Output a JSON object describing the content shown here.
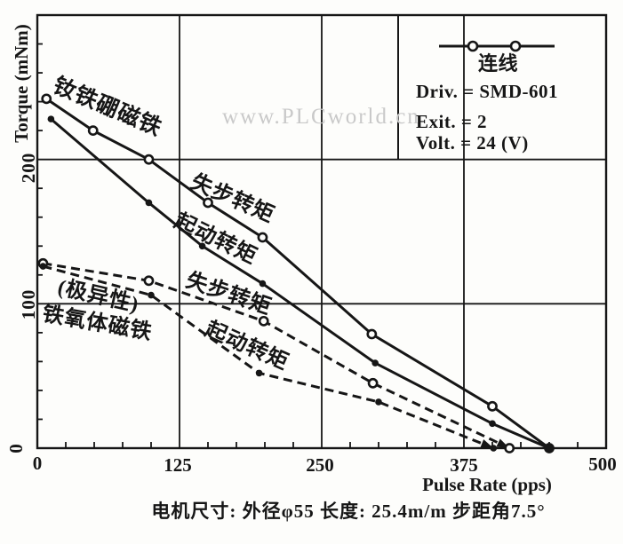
{
  "figure": {
    "watermark": "www.PLCworld.cn",
    "caption": "电机尺寸: 外径φ55   长度: 25.4m/m   步距角7.5°"
  },
  "legend": {
    "title": "连线",
    "lines": [
      "Driv. = SMD-601",
      "Exit. = 2",
      "Volt. = 24 (V)"
    ]
  },
  "chart_data": {
    "type": "line",
    "title": "",
    "xlabel": "Pulse Rate (pps)",
    "ylabel": "Torque (mNm)",
    "xlim": [
      0,
      500
    ],
    "ylim": [
      0,
      300
    ],
    "x_ticks": [
      0,
      125,
      250,
      375,
      500
    ],
    "y_ticks": [
      0,
      100,
      200
    ],
    "grid": true,
    "legend_position": "top-right",
    "series": [
      {
        "name": "ndfeb-pullout-torque",
        "label": "失步转矩",
        "magnet": "钕铁硼磁铁",
        "line": "solid",
        "marker": "open-circle",
        "arrow_end": false,
        "points": [
          [
            8,
            242
          ],
          [
            49,
            220
          ],
          [
            98,
            200
          ],
          [
            150,
            170
          ],
          [
            198,
            146
          ],
          [
            294,
            79
          ],
          [
            400,
            29
          ],
          [
            450,
            0
          ]
        ]
      },
      {
        "name": "ndfeb-start-torque",
        "label": "起动转矩",
        "magnet": "钕铁硼磁铁",
        "line": "solid",
        "marker": "filled-dot",
        "arrow_end": false,
        "points": [
          [
            12,
            228
          ],
          [
            98,
            170
          ],
          [
            145,
            140
          ],
          [
            198,
            114
          ],
          [
            297,
            59
          ],
          [
            400,
            17
          ],
          [
            450,
            0
          ]
        ]
      },
      {
        "name": "ferrite-pullout-torque",
        "label": "失步转矩",
        "magnet_l1": "(极异性)",
        "magnet_l2": "铁氧体磁铁",
        "line": "dashed",
        "marker": "open-circle",
        "arrow_end": true,
        "points": [
          [
            5,
            128
          ],
          [
            98,
            116
          ],
          [
            199,
            88
          ],
          [
            295,
            45
          ],
          [
            415,
            0
          ]
        ]
      },
      {
        "name": "ferrite-start-torque",
        "label": "起动转矩",
        "magnet_l1": "(极异性)",
        "magnet_l2": "铁氧体磁铁",
        "line": "dashed",
        "marker": "filled-dot",
        "arrow_end": true,
        "points": [
          [
            5,
            126
          ],
          [
            100,
            106
          ],
          [
            195,
            52
          ],
          [
            300,
            32
          ],
          [
            401,
            0
          ]
        ]
      }
    ]
  }
}
